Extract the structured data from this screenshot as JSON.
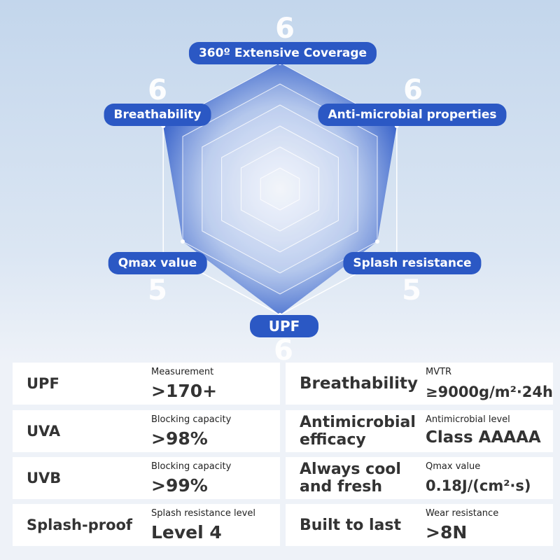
{
  "chart_data": {
    "type": "radar",
    "axes": [
      "360º Extensive Coverage",
      "Anti-microbial properties",
      "Splash resistance",
      "UPF",
      "Qmax value",
      "Breathability"
    ],
    "values": [
      6,
      6,
      5,
      6,
      5,
      6
    ],
    "max": 6,
    "grid_levels": 6,
    "color": "#2b58c4"
  },
  "cards": [
    {
      "title": "UPF",
      "label": "Measurement",
      "value": ">170+"
    },
    {
      "title": "Breathability",
      "label": "MVTR",
      "value": "≥9000g/m²·24h"
    },
    {
      "title": "UVA",
      "label": "Blocking capacity",
      "value": ">98%"
    },
    {
      "title": "Antimicrobial efficacy",
      "label": "Antimicrobial level",
      "value": "Class AAAAA"
    },
    {
      "title": "UVB",
      "label": "Blocking capacity",
      "value": ">99%"
    },
    {
      "title": "Always cool and fresh",
      "label": "Qmax value",
      "value": "0.18J/(cm²·s)"
    },
    {
      "title": "Splash-proof",
      "label": "Splash resistance level",
      "value": "Level 4"
    },
    {
      "title": "Built to last",
      "label": "Wear resistance",
      "value": ">8N"
    }
  ]
}
